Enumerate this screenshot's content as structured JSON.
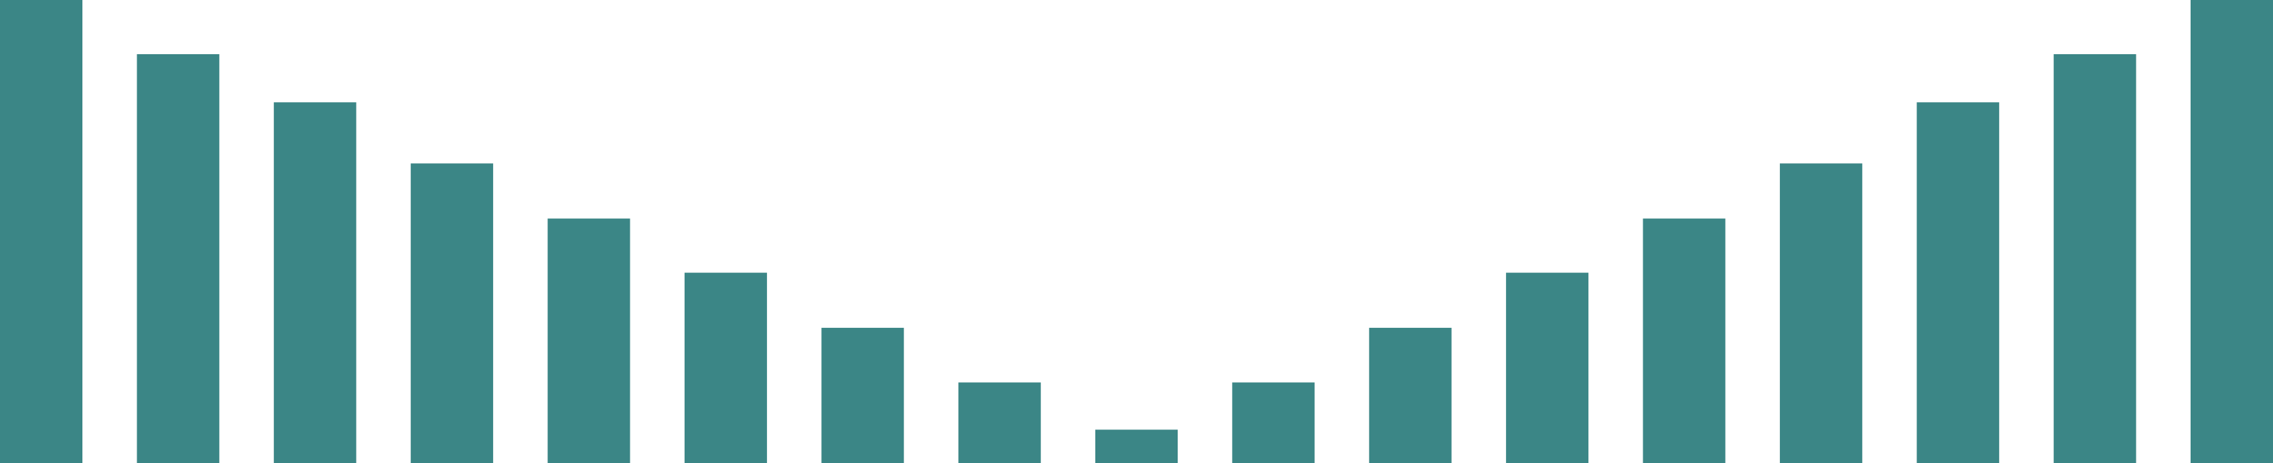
{
  "chart_data": {
    "type": "bar",
    "bar_color": "#3b8686",
    "background": "#ffffff",
    "values": [
      100,
      88.3,
      77.9,
      64.7,
      52.8,
      41.1,
      29.2,
      17.4,
      7.2,
      17.4,
      29.2,
      41.1,
      52.8,
      64.7,
      77.9,
      88.3,
      100
    ],
    "ylim": [
      0,
      100
    ],
    "grid": false,
    "legend": "none"
  }
}
